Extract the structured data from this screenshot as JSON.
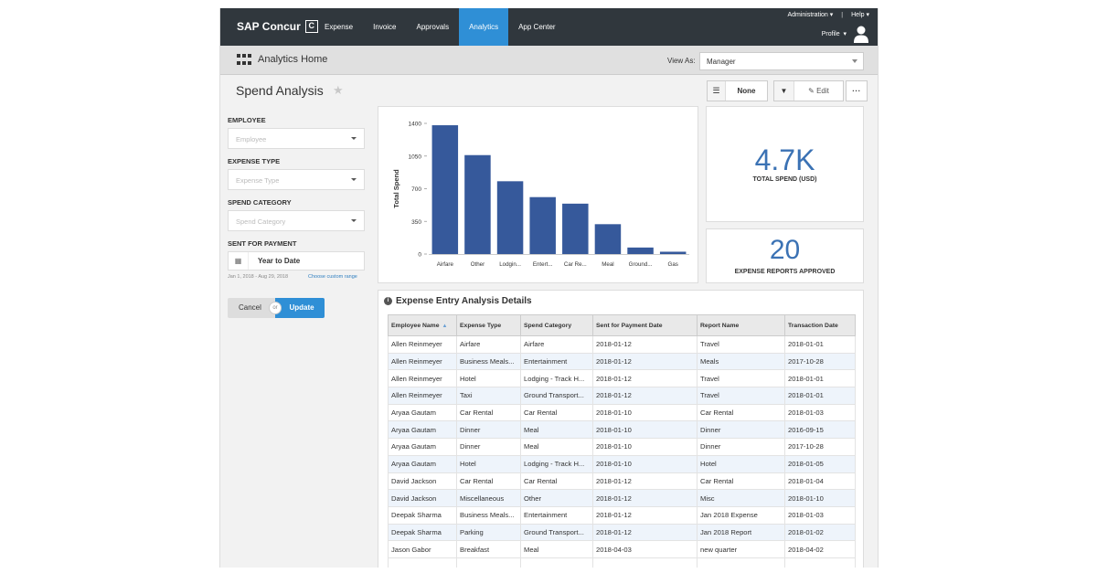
{
  "brand": {
    "name": "SAP Concur",
    "mark": "C"
  },
  "nav": {
    "tabs": [
      {
        "label": "Expense",
        "active": false
      },
      {
        "label": "Invoice",
        "active": false
      },
      {
        "label": "Approvals",
        "active": false
      },
      {
        "label": "Analytics",
        "active": true
      },
      {
        "label": "App Center",
        "active": false
      }
    ],
    "administration": "Administration",
    "help": "Help",
    "profile": "Profile"
  },
  "subheader": {
    "title": "Analytics Home",
    "view_as_label": "View As:",
    "view_as_value": "Manager"
  },
  "page": {
    "title": "Spend Analysis",
    "toolbar": {
      "none_label": "None",
      "edit_label": "Edit",
      "more_label": "···"
    }
  },
  "filters": {
    "employee": {
      "label": "EMPLOYEE",
      "placeholder": "Employee"
    },
    "expense_type": {
      "label": "EXPENSE TYPE",
      "placeholder": "Expense Type"
    },
    "spend_category": {
      "label": "SPEND CATEGORY",
      "placeholder": "Spend Category"
    },
    "sent_for_payment": {
      "label": "SENT FOR PAYMENT",
      "value": "Year to Date",
      "range": "Jan 1, 2018 - Aug 29, 2018",
      "custom_link": "Choose custom range"
    },
    "cancel_label": "Cancel",
    "or_label": "or",
    "update_label": "Update"
  },
  "kpis": [
    {
      "value": "4.7K",
      "label": "TOTAL SPEND (USD)"
    },
    {
      "value": "20",
      "label": "EXPENSE REPORTS APPROVED"
    }
  ],
  "colors": {
    "nav_bg": "#30373d",
    "accent": "#2f8fd6",
    "bar": "#36599b",
    "kpi": "#3b72b4"
  },
  "chart_data": {
    "type": "bar",
    "categories": [
      "Airfare",
      "Other",
      "Lodgin...",
      "Entert...",
      "Car Re...",
      "Meal",
      "Ground...",
      "Gas"
    ],
    "values": [
      1380,
      1060,
      780,
      610,
      540,
      320,
      70,
      25
    ],
    "ylabel": "Total Spend",
    "yticks": [
      0,
      350,
      700,
      1050,
      1400
    ],
    "ylim": [
      0,
      1400
    ],
    "grid": false
  },
  "table": {
    "title": "Expense Entry Analysis Details",
    "columns": [
      "Employee Name",
      "Expense Type",
      "Spend Category",
      "Sent for Payment Date",
      "Report Name",
      "Transaction Date"
    ],
    "rows": [
      [
        "Allen Reinmeyer",
        "Airfare",
        "Airfare",
        "2018-01-12",
        "Travel",
        "2018-01-01"
      ],
      [
        "Allen Reinmeyer",
        "Business Meals...",
        "Entertainment",
        "2018-01-12",
        "Meals",
        "2017-10-28"
      ],
      [
        "Allen Reinmeyer",
        "Hotel",
        "Lodging - Track H...",
        "2018-01-12",
        "Travel",
        "2018-01-01"
      ],
      [
        "Allen Reinmeyer",
        "Taxi",
        "Ground Transport...",
        "2018-01-12",
        "Travel",
        "2018-01-01"
      ],
      [
        "Aryaa Gautam",
        "Car Rental",
        "Car Rental",
        "2018-01-10",
        "Car Rental",
        "2018-01-03"
      ],
      [
        "Aryaa Gautam",
        "Dinner",
        "Meal",
        "2018-01-10",
        "Dinner",
        "2016-09-15"
      ],
      [
        "Aryaa Gautam",
        "Dinner",
        "Meal",
        "2018-01-10",
        "Dinner",
        "2017-10-28"
      ],
      [
        "Aryaa Gautam",
        "Hotel",
        "Lodging - Track H...",
        "2018-01-10",
        "Hotel",
        "2018-01-05"
      ],
      [
        "David Jackson",
        "Car Rental",
        "Car Rental",
        "2018-01-12",
        "Car Rental",
        "2018-01-04"
      ],
      [
        "David Jackson",
        "Miscellaneous",
        "Other",
        "2018-01-12",
        "Misc",
        "2018-01-10"
      ],
      [
        "Deepak Sharma",
        "Business Meals...",
        "Entertainment",
        "2018-01-12",
        "Jan 2018 Expense",
        "2018-01-03"
      ],
      [
        "Deepak Sharma",
        "Parking",
        "Ground Transport...",
        "2018-01-12",
        "Jan 2018 Report",
        "2018-01-02"
      ],
      [
        "Jason Gabor",
        "Breakfast",
        "Meal",
        "2018-04-03",
        "new quarter",
        "2018-04-02"
      ]
    ]
  }
}
